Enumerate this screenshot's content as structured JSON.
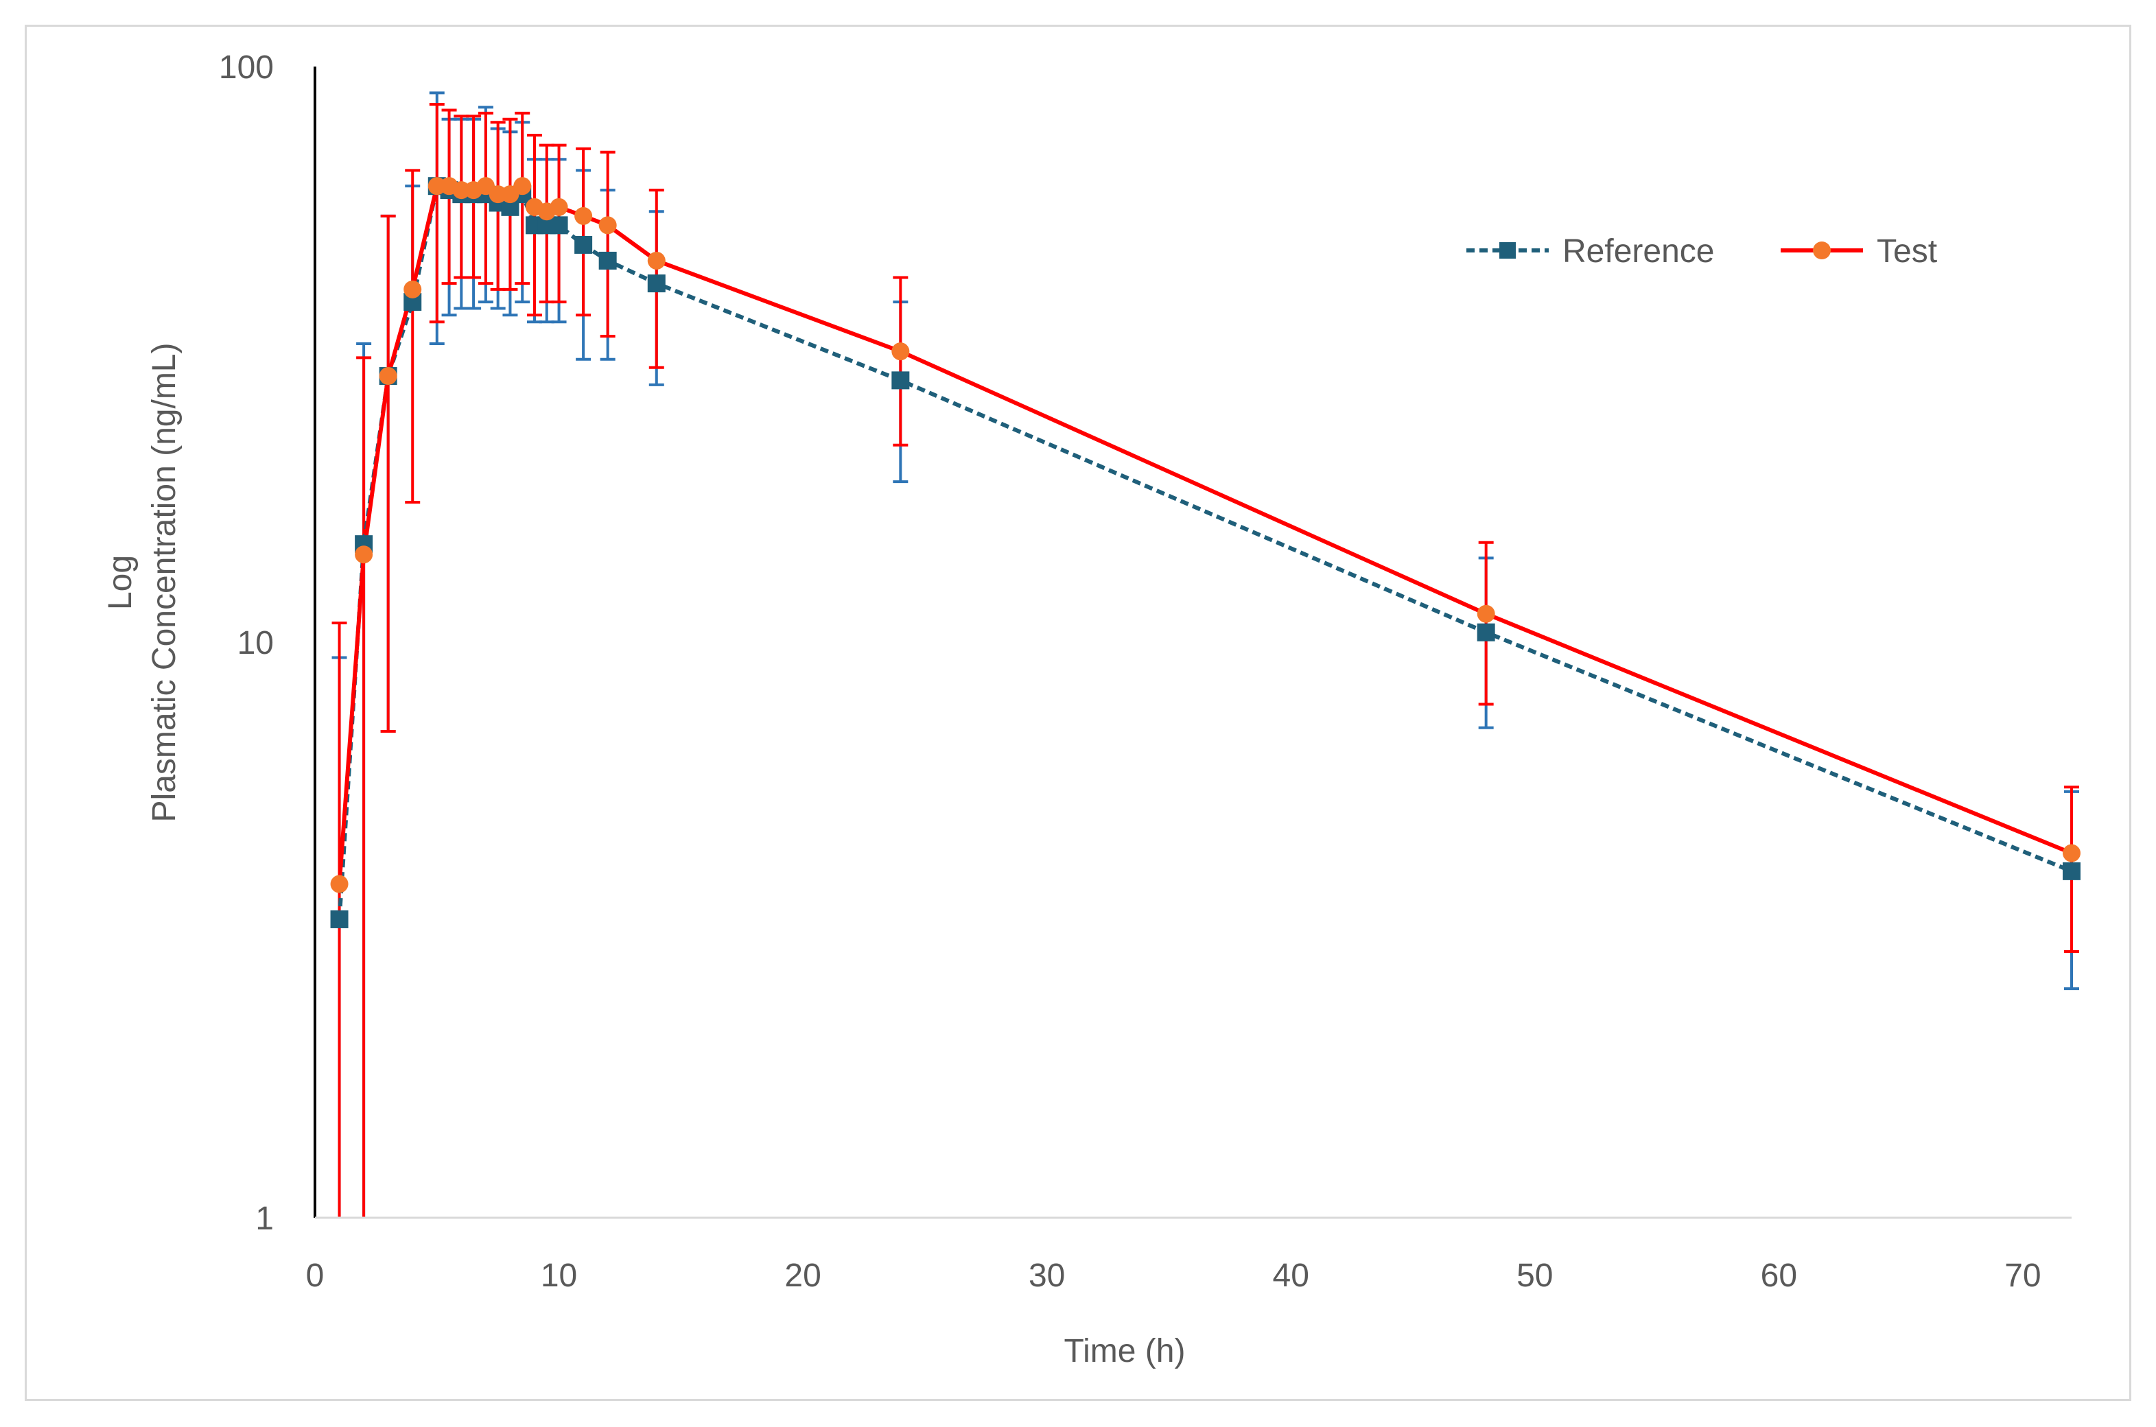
{
  "chart_data": {
    "type": "line",
    "title": "",
    "xlabel": "Time (h)",
    "ylabel_lines": [
      "Log",
      "Plasmatic Concentration (ng/mL)"
    ],
    "xlim": [
      0,
      72
    ],
    "ylim": [
      1,
      100
    ],
    "yscale": "log",
    "x_ticks": [
      0,
      10,
      20,
      30,
      40,
      50,
      60,
      70
    ],
    "y_ticks": [
      1,
      10,
      100
    ],
    "grid": false,
    "legend_position": "top-right",
    "colors": {
      "Reference": "#1f5f7a",
      "Reference_error": "#2e75b6",
      "Test_line": "#ff0000",
      "Test_marker": "#f4782a",
      "axis": "#000000",
      "axis_bottom": "#d9d9d9"
    },
    "series": [
      {
        "name": "Reference",
        "line_style": "dashed",
        "marker": "square",
        "x": [
          1,
          2,
          3,
          4,
          5,
          5.5,
          6,
          6.5,
          7,
          7.5,
          8,
          8.5,
          9,
          9.5,
          10,
          11,
          12,
          14,
          24,
          48,
          72
        ],
        "y": [
          3.3,
          14.8,
          29,
          39,
          62,
          61,
          60,
          60,
          60,
          58,
          57,
          60,
          53,
          53,
          53,
          49,
          46,
          42,
          28.5,
          10.4,
          4.0
        ],
        "err_low": [
          3.3,
          13.8,
          22,
          0,
          29,
          24,
          22,
          22,
          21,
          20,
          20,
          21,
          17,
          17,
          17,
          18,
          15,
          14,
          9.5,
          3.3,
          1.5
        ],
        "err_high": [
          6.1,
          18.2,
          26,
          23,
          28,
          20,
          21,
          21,
          25,
          20,
          20,
          20,
          16,
          16,
          16,
          17,
          15,
          14,
          10.5,
          3.6,
          1.5
        ]
      },
      {
        "name": "Test",
        "line_style": "solid",
        "marker": "circle",
        "x": [
          1,
          2,
          3,
          4,
          5,
          5.5,
          6,
          6.5,
          7,
          7.5,
          8,
          8.5,
          9,
          9.5,
          10,
          11,
          12,
          14,
          24,
          48,
          72
        ],
        "y": [
          3.8,
          14.2,
          29,
          41,
          62,
          62,
          61,
          61,
          62,
          60,
          60,
          62,
          57,
          56,
          57,
          55,
          53,
          46,
          32,
          11.2,
          4.3
        ],
        "err_low": [
          3.8,
          14.2,
          22,
          23.5,
          26,
          20,
          18,
          18,
          20,
          19,
          19,
          20,
          20,
          17,
          18,
          18,
          19,
          16,
          10,
          3.4,
          1.4
        ],
        "err_high": [
          7.0,
          17,
          26,
          25,
          24,
          22,
          21,
          21,
          21,
          20,
          21,
          21,
          19,
          17,
          16,
          17,
          18,
          15,
          11,
          3.7,
          1.3
        ]
      }
    ]
  }
}
